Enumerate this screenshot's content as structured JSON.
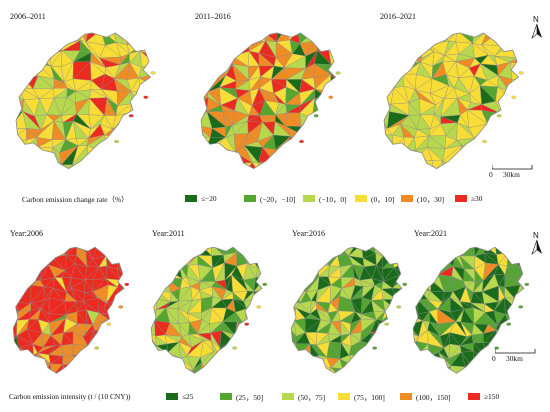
{
  "top_row": {
    "panels": [
      {
        "title": "2006–2011"
      },
      {
        "title": "2011–2016"
      },
      {
        "title": "2016–2021"
      }
    ],
    "legend": {
      "label": "Carbon emission change rate（%）",
      "items": [
        {
          "text": "≤−20",
          "color": "#1a6b1a"
        },
        {
          "text": "(−20，−10]",
          "color": "#55a531"
        },
        {
          "text": "(−10，0]",
          "color": "#b7d84c"
        },
        {
          "text": "(0，10]",
          "color": "#f7dd35"
        },
        {
          "text": "(10，30]",
          "color": "#f08c24"
        },
        {
          "text": "≥30",
          "color": "#ec2a1f"
        }
      ]
    },
    "scale": {
      "zero": "0",
      "dist": "30km"
    },
    "north": "N"
  },
  "bottom_row": {
    "panels": [
      {
        "title": "Year:2006"
      },
      {
        "title": "Year:2011"
      },
      {
        "title": "Year:2016"
      },
      {
        "title": "Year:2021"
      }
    ],
    "legend": {
      "label": "Carbon emission intensity (t / (10    CNY))",
      "items": [
        {
          "text": "≤25",
          "color": "#1a6b1a"
        },
        {
          "text": "(25，50]",
          "color": "#55a531"
        },
        {
          "text": "(50，75]",
          "color": "#b7d84c"
        },
        {
          "text": "(75，100]",
          "color": "#f7dd35"
        },
        {
          "text": "(100，150]",
          "color": "#f08c24"
        },
        {
          "text": "≥150",
          "color": "#ec2a1f"
        }
      ]
    },
    "scale": {
      "zero": "0",
      "dist": "30km"
    },
    "north": "N"
  },
  "map_style": {
    "border_color": "#8a8a8a",
    "region_class_mix": {
      "top_0": [
        0.02,
        0.08,
        0.22,
        0.48,
        0.14,
        0.06
      ],
      "top_1": [
        0.1,
        0.08,
        0.1,
        0.2,
        0.32,
        0.2
      ],
      "top_2": [
        0.02,
        0.06,
        0.3,
        0.52,
        0.07,
        0.03
      ],
      "bot_0": [
        0.01,
        0.03,
        0.05,
        0.12,
        0.34,
        0.45
      ],
      "bot_1": [
        0.06,
        0.12,
        0.32,
        0.36,
        0.1,
        0.04
      ],
      "bot_2": [
        0.16,
        0.26,
        0.34,
        0.18,
        0.05,
        0.01
      ],
      "bot_3": [
        0.34,
        0.28,
        0.22,
        0.12,
        0.03,
        0.01
      ]
    }
  }
}
